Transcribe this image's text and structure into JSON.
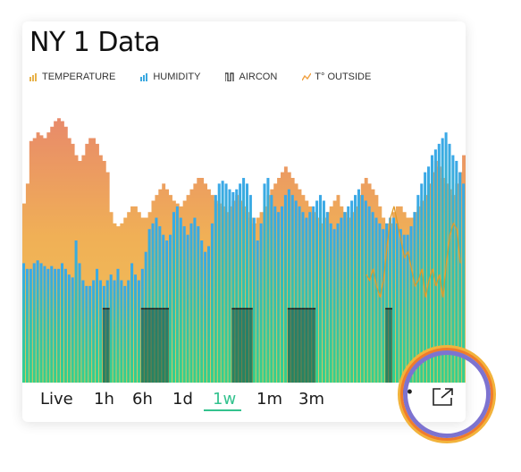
{
  "widget": {
    "title": "NY 1 Data"
  },
  "legend": [
    {
      "label": "TEMPERATURE",
      "color": "#e8b24a",
      "icon": "bar-chart-icon"
    },
    {
      "label": "HUMIDITY",
      "color": "#3aa8e0",
      "icon": "bar-chart-icon"
    },
    {
      "label": "AIRCON",
      "color": "#222222",
      "icon": "square-wave-icon"
    },
    {
      "label": "T° OUTSIDE",
      "color": "#f0a040",
      "icon": "line-chart-icon"
    }
  ],
  "tabs": [
    {
      "label": "Live",
      "active": false
    },
    {
      "label": "1h",
      "active": false
    },
    {
      "label": "6h",
      "active": false
    },
    {
      "label": "1d",
      "active": false
    },
    {
      "label": "1w",
      "active": true
    },
    {
      "label": "1m",
      "active": false
    },
    {
      "label": "3m",
      "active": false
    }
  ],
  "menu_label": "••",
  "accent_color": "#33c28e",
  "chart_data": {
    "type": "bar",
    "series": [
      {
        "name": "TEMPERATURE",
        "values": [
          0.63,
          0.7,
          0.85,
          0.86,
          0.88,
          0.87,
          0.86,
          0.88,
          0.9,
          0.92,
          0.93,
          0.92,
          0.9,
          0.86,
          0.84,
          0.8,
          0.78,
          0.8,
          0.84,
          0.86,
          0.86,
          0.84,
          0.8,
          0.78,
          0.74,
          0.6,
          0.56,
          0.55,
          0.56,
          0.58,
          0.6,
          0.62,
          0.62,
          0.6,
          0.58,
          0.58,
          0.6,
          0.64,
          0.66,
          0.68,
          0.7,
          0.68,
          0.66,
          0.64,
          0.63,
          0.62,
          0.64,
          0.66,
          0.68,
          0.7,
          0.72,
          0.72,
          0.7,
          0.68,
          0.66,
          0.64,
          0.63,
          0.62,
          0.6,
          0.62,
          0.64,
          0.66,
          0.64,
          0.62,
          0.6,
          0.58,
          0.56,
          0.58,
          0.6,
          0.62,
          0.66,
          0.68,
          0.7,
          0.72,
          0.74,
          0.76,
          0.74,
          0.72,
          0.7,
          0.68,
          0.66,
          0.64,
          0.62,
          0.6,
          0.58,
          0.56,
          0.58,
          0.6,
          0.62,
          0.64,
          0.66,
          0.62,
          0.6,
          0.58,
          0.6,
          0.62,
          0.66,
          0.7,
          0.72,
          0.7,
          0.68,
          0.66,
          0.62,
          0.58,
          0.56,
          0.56,
          0.6,
          0.62,
          0.62,
          0.6,
          0.58,
          0.58,
          0.6,
          0.62,
          0.64,
          0.66,
          0.7,
          0.74,
          0.78,
          0.76,
          0.72,
          0.7,
          0.68,
          0.66,
          0.7,
          0.74,
          0.8
        ]
      },
      {
        "name": "HUMIDITY",
        "values": [
          0.42,
          0.4,
          0.4,
          0.42,
          0.43,
          0.42,
          0.41,
          0.4,
          0.41,
          0.4,
          0.4,
          0.42,
          0.4,
          0.38,
          0.37,
          0.5,
          0.42,
          0.36,
          0.34,
          0.34,
          0.36,
          0.4,
          0.36,
          0.34,
          0.36,
          0.38,
          0.36,
          0.4,
          0.36,
          0.34,
          0.36,
          0.42,
          0.38,
          0.36,
          0.4,
          0.46,
          0.54,
          0.56,
          0.58,
          0.55,
          0.52,
          0.5,
          0.52,
          0.6,
          0.62,
          0.58,
          0.55,
          0.52,
          0.56,
          0.58,
          0.55,
          0.5,
          0.46,
          0.48,
          0.56,
          0.66,
          0.7,
          0.71,
          0.7,
          0.68,
          0.67,
          0.68,
          0.7,
          0.72,
          0.7,
          0.66,
          0.58,
          0.5,
          0.56,
          0.7,
          0.72,
          0.66,
          0.62,
          0.6,
          0.62,
          0.66,
          0.68,
          0.66,
          0.64,
          0.62,
          0.6,
          0.58,
          0.6,
          0.62,
          0.64,
          0.66,
          0.64,
          0.6,
          0.56,
          0.54,
          0.56,
          0.58,
          0.6,
          0.62,
          0.64,
          0.66,
          0.68,
          0.66,
          0.64,
          0.62,
          0.6,
          0.58,
          0.56,
          0.54,
          0.56,
          0.58,
          0.58,
          0.56,
          0.54,
          0.52,
          0.52,
          0.55,
          0.6,
          0.66,
          0.7,
          0.74,
          0.76,
          0.8,
          0.82,
          0.84,
          0.86,
          0.88,
          0.84,
          0.8,
          0.78,
          0.74,
          0.7
        ]
      },
      {
        "name": "AIRCON",
        "values": [
          0,
          0,
          0,
          0,
          0,
          0,
          0,
          0,
          0,
          0,
          0,
          0,
          0,
          0,
          0,
          0,
          0,
          0,
          0,
          0,
          0,
          0,
          0,
          1,
          1,
          0,
          0,
          0,
          0,
          0,
          0,
          0,
          0,
          0,
          1,
          1,
          1,
          1,
          1,
          1,
          1,
          1,
          0,
          0,
          0,
          0,
          0,
          0,
          0,
          0,
          0,
          0,
          0,
          0,
          0,
          0,
          0,
          0,
          0,
          0,
          1,
          1,
          1,
          1,
          1,
          1,
          0,
          0,
          0,
          0,
          0,
          0,
          0,
          0,
          0,
          0,
          1,
          1,
          1,
          1,
          1,
          1,
          1,
          1,
          0,
          0,
          0,
          0,
          0,
          0,
          0,
          0,
          0,
          0,
          0,
          0,
          0,
          0,
          0,
          0,
          0,
          0,
          0,
          0,
          1,
          1,
          0,
          0,
          0,
          0,
          0,
          0,
          0,
          0,
          0,
          0,
          0,
          0,
          0,
          0,
          0,
          0,
          0,
          0,
          0,
          0
        ]
      },
      {
        "name": "T° OUTSIDE",
        "values": [
          null,
          null,
          null,
          null,
          null,
          null,
          null,
          null,
          null,
          null,
          null,
          null,
          null,
          null,
          null,
          null,
          null,
          null,
          null,
          null,
          null,
          null,
          null,
          null,
          null,
          null,
          null,
          null,
          null,
          null,
          null,
          null,
          null,
          null,
          null,
          null,
          null,
          null,
          null,
          null,
          null,
          null,
          null,
          null,
          null,
          null,
          null,
          null,
          null,
          null,
          null,
          null,
          null,
          null,
          null,
          null,
          null,
          null,
          null,
          null,
          null,
          null,
          null,
          null,
          null,
          null,
          null,
          null,
          null,
          null,
          null,
          null,
          null,
          null,
          null,
          null,
          null,
          null,
          null,
          null,
          null,
          null,
          null,
          null,
          null,
          null,
          null,
          null,
          null,
          null,
          null,
          null,
          null,
          null,
          null,
          null,
          null,
          null,
          0.38,
          0.36,
          0.4,
          0.34,
          0.3,
          0.36,
          0.48,
          0.58,
          0.62,
          0.56,
          0.5,
          0.44,
          0.46,
          0.4,
          0.34,
          0.36,
          0.4,
          0.3,
          0.36,
          0.4,
          0.34,
          0.38,
          0.3,
          0.42,
          0.52,
          0.56,
          0.54,
          0.42
        ]
      }
    ]
  }
}
